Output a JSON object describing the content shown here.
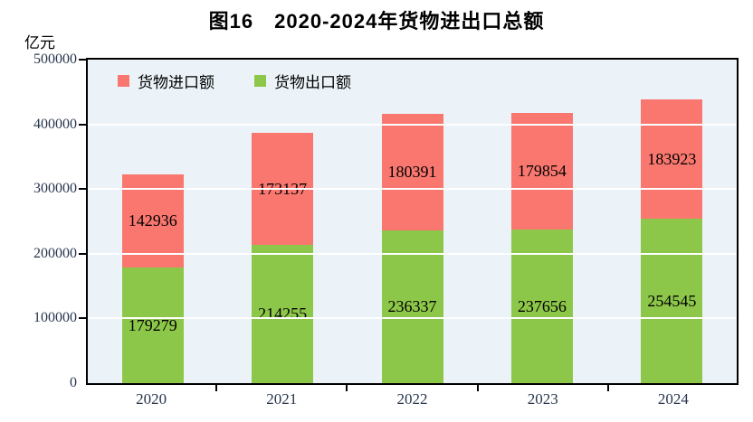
{
  "title": "图16　2020-2024年货物进出口总额",
  "unit_label": "亿元",
  "legend": [
    {
      "label": "货物进口额",
      "color": "#f9776f"
    },
    {
      "label": "货物出口额",
      "color": "#8dc749"
    }
  ],
  "colors": {
    "import_bar": "#f9776f",
    "export_bar": "#8dc749",
    "plot_background": "#ebf3f8",
    "gridline": "#ffffff",
    "axis": "#000000"
  },
  "y_axis": {
    "ticks": [
      "0",
      "100000",
      "200000",
      "300000",
      "400000",
      "500000"
    ]
  },
  "chart_data": {
    "type": "bar",
    "stacked": true,
    "title": "图16　2020-2024年货物进出口总额",
    "ylabel": "亿元",
    "categories": [
      "2020",
      "2021",
      "2022",
      "2023",
      "2024"
    ],
    "series": [
      {
        "name": "货物出口额",
        "color": "#8dc749",
        "values": [
          179279,
          214255,
          236337,
          237656,
          254545
        ]
      },
      {
        "name": "货物进口额",
        "color": "#f9776f",
        "values": [
          142936,
          173137,
          180391,
          179854,
          183923
        ]
      }
    ],
    "ylim": [
      0,
      500000
    ],
    "ytick_interval": 100000,
    "grid": true,
    "legend_position": "top-left-inside"
  }
}
